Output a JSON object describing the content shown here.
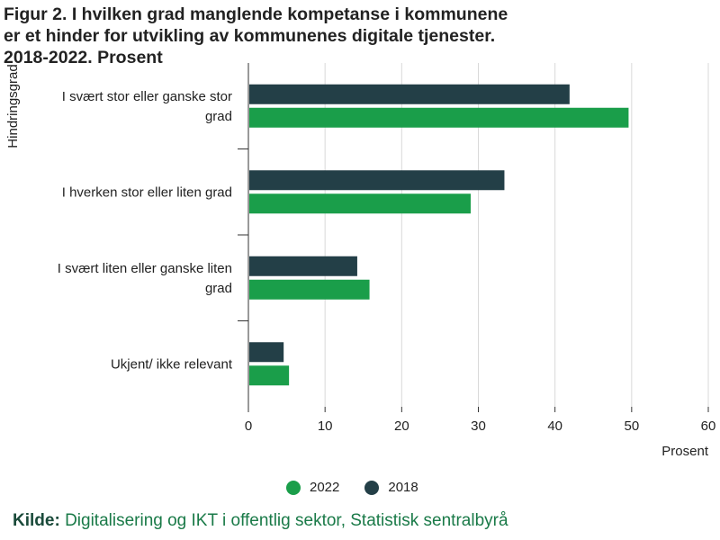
{
  "title": "Figur 2. I hvilken grad manglende kompetanse i kommunene er et hinder for utvikling av kommunenes digitale tjenester. 2018-2022. Prosent",
  "source": {
    "label": "Kilde:",
    "text": "Digitalisering og IKT i offentlig sektor, Statistisk sentralbyrå"
  },
  "legend": [
    {
      "name": "2022",
      "color": "#1a9e4a"
    },
    {
      "name": "2018",
      "color": "#233f47"
    }
  ],
  "chart_data": {
    "type": "bar",
    "orientation": "horizontal",
    "title": "Figur 2. I hvilken grad manglende kompetanse i kommunene er et hinder for utvikling av kommunenes digitale tjenester. 2018-2022. Prosent",
    "xlabel": "Prosent",
    "ylabel": "Hindringsgrad",
    "xlim": [
      0,
      60
    ],
    "xticks": [
      0,
      10,
      20,
      30,
      40,
      50,
      60
    ],
    "grid": true,
    "legend_position": "bottom",
    "categories": [
      [
        "I svært stor eller ganske stor",
        "grad"
      ],
      [
        "I hverken stor eller liten grad"
      ],
      [
        "I svært liten eller ganske liten",
        "grad"
      ],
      [
        "Ukjent/ ikke relevant"
      ]
    ],
    "series": [
      {
        "name": "2018",
        "color": "#233f47",
        "values": [
          41.9,
          33.4,
          14.2,
          4.6
        ]
      },
      {
        "name": "2022",
        "color": "#1a9e4a",
        "values": [
          49.6,
          29.0,
          15.8,
          5.3
        ]
      }
    ]
  }
}
